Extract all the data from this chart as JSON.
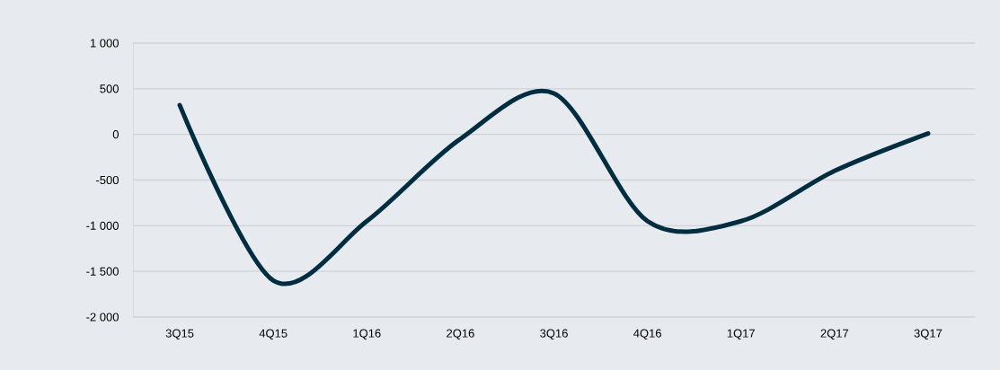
{
  "chart_data": {
    "type": "line",
    "categories": [
      "3Q15",
      "4Q15",
      "1Q16",
      "2Q16",
      "3Q16",
      "4Q16",
      "1Q17",
      "2Q17",
      "3Q17"
    ],
    "series": [
      {
        "color": "#002d40",
        "values": [
          320,
          -1600,
          -950,
          -50,
          450,
          -950,
          -950,
          -400,
          10
        ]
      }
    ],
    "ylim": [
      -2000,
      1000
    ],
    "yticks": [
      {
        "value": -2000,
        "label": "-2 000"
      },
      {
        "value": -1500,
        "label": "-1 500"
      },
      {
        "value": -1000,
        "label": "-1 000"
      },
      {
        "value": -500,
        "label": "-500"
      },
      0,
      500,
      {
        "value": 1000,
        "label": "1 000"
      }
    ],
    "grid": "y",
    "marker": "none",
    "line_style": "solid"
  }
}
